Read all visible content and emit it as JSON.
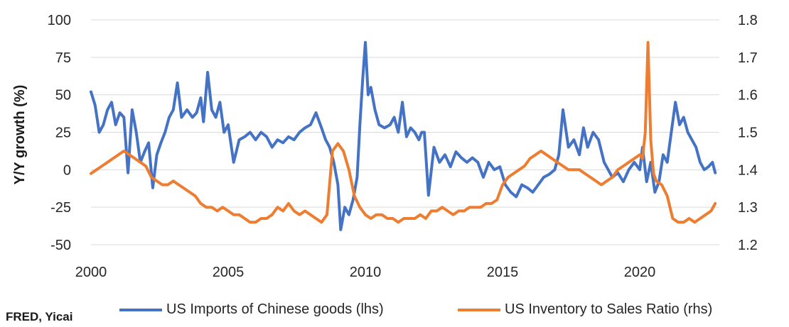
{
  "chart_data": {
    "type": "line",
    "source": "FRED, Yicai",
    "ylabel_left": "Y/Y growth (%)",
    "ylim_left": [
      -50,
      100
    ],
    "yticks_left": [
      "100",
      "75",
      "50",
      "25",
      "0",
      "-25",
      "-50"
    ],
    "ylim_right": [
      1.2,
      1.8
    ],
    "yticks_right": [
      "1.8",
      "1.7",
      "1.6",
      "1.5",
      "1.4",
      "1.3",
      "1.2"
    ],
    "xlim": [
      2000,
      2022.75
    ],
    "xticks": [
      "2000",
      "2005",
      "2010",
      "2015",
      "2020"
    ],
    "grid": true,
    "legend_position": "bottom",
    "colors": {
      "imports": "#4472C4",
      "inventory": "#ED7D31"
    },
    "series": [
      {
        "name": "US Imports of Chinese goods (lhs)",
        "axis": "left",
        "x": [
          2000.0,
          2000.15,
          2000.3,
          2000.45,
          2000.6,
          2000.75,
          2000.9,
          2001.05,
          2001.2,
          2001.35,
          2001.5,
          2001.65,
          2001.8,
          2001.95,
          2002.1,
          2002.25,
          2002.4,
          2002.55,
          2002.7,
          2002.85,
          2003.0,
          2003.15,
          2003.3,
          2003.5,
          2003.7,
          2003.85,
          2004.0,
          2004.1,
          2004.25,
          2004.4,
          2004.55,
          2004.7,
          2004.85,
          2005.0,
          2005.2,
          2005.4,
          2005.6,
          2005.8,
          2006.0,
          2006.2,
          2006.4,
          2006.6,
          2006.8,
          2007.0,
          2007.2,
          2007.4,
          2007.6,
          2007.8,
          2008.0,
          2008.2,
          2008.4,
          2008.55,
          2008.7,
          2008.85,
          2009.0,
          2009.1,
          2009.25,
          2009.4,
          2009.55,
          2009.7,
          2009.8,
          2009.9,
          2010.0,
          2010.1,
          2010.2,
          2010.35,
          2010.5,
          2010.7,
          2010.9,
          2011.05,
          2011.2,
          2011.35,
          2011.5,
          2011.65,
          2011.8,
          2011.95,
          2012.05,
          2012.15,
          2012.3,
          2012.5,
          2012.7,
          2012.9,
          2013.1,
          2013.3,
          2013.5,
          2013.7,
          2013.9,
          2014.1,
          2014.3,
          2014.5,
          2014.7,
          2014.9,
          2015.1,
          2015.3,
          2015.5,
          2015.7,
          2015.9,
          2016.1,
          2016.3,
          2016.5,
          2016.7,
          2016.9,
          2017.05,
          2017.2,
          2017.4,
          2017.6,
          2017.8,
          2017.95,
          2018.1,
          2018.3,
          2018.5,
          2018.7,
          2018.85,
          2019.0,
          2019.2,
          2019.4,
          2019.6,
          2019.8,
          2020.0,
          2020.1,
          2020.25,
          2020.4,
          2020.55,
          2020.7,
          2020.85,
          2021.0,
          2021.15,
          2021.3,
          2021.45,
          2021.6,
          2021.75,
          2021.9,
          2022.05,
          2022.2,
          2022.35,
          2022.5,
          2022.65,
          2022.75
        ],
        "values": [
          52,
          43,
          25,
          30,
          40,
          45,
          30,
          38,
          35,
          -2,
          40,
          25,
          5,
          12,
          18,
          -12,
          10,
          18,
          25,
          35,
          40,
          58,
          35,
          40,
          35,
          38,
          48,
          32,
          65,
          40,
          35,
          45,
          25,
          30,
          5,
          20,
          22,
          25,
          20,
          25,
          22,
          15,
          20,
          18,
          22,
          20,
          25,
          28,
          30,
          38,
          28,
          20,
          15,
          5,
          -10,
          -40,
          -25,
          -30,
          -20,
          -5,
          30,
          60,
          85,
          50,
          55,
          40,
          30,
          28,
          30,
          35,
          25,
          45,
          22,
          28,
          25,
          20,
          25,
          25,
          -17,
          15,
          5,
          10,
          2,
          12,
          8,
          5,
          8,
          5,
          -5,
          5,
          0,
          2,
          -10,
          -15,
          -18,
          -10,
          -12,
          -15,
          -10,
          -5,
          -3,
          0,
          10,
          40,
          15,
          20,
          10,
          28,
          15,
          25,
          20,
          5,
          0,
          -5,
          -2,
          -8,
          0,
          5,
          0,
          15,
          -8,
          5,
          -15,
          -8,
          10,
          5,
          25,
          45,
          30,
          35,
          25,
          20,
          15,
          5,
          0,
          2,
          5,
          -2
        ]
      },
      {
        "name": "US Inventory to Sales Ratio (rhs)",
        "axis": "right",
        "x": [
          2000.0,
          2000.2,
          2000.4,
          2000.6,
          2000.8,
          2001.0,
          2001.2,
          2001.4,
          2001.6,
          2001.8,
          2002.0,
          2002.2,
          2002.4,
          2002.6,
          2002.8,
          2003.0,
          2003.2,
          2003.4,
          2003.6,
          2003.8,
          2004.0,
          2004.2,
          2004.4,
          2004.6,
          2004.8,
          2005.0,
          2005.2,
          2005.4,
          2005.6,
          2005.8,
          2006.0,
          2006.2,
          2006.4,
          2006.6,
          2006.8,
          2007.0,
          2007.2,
          2007.4,
          2007.6,
          2007.8,
          2008.0,
          2008.2,
          2008.4,
          2008.6,
          2008.8,
          2009.0,
          2009.2,
          2009.4,
          2009.6,
          2009.8,
          2010.0,
          2010.2,
          2010.4,
          2010.6,
          2010.8,
          2011.0,
          2011.2,
          2011.4,
          2011.6,
          2011.8,
          2012.0,
          2012.2,
          2012.4,
          2012.6,
          2012.8,
          2013.0,
          2013.2,
          2013.4,
          2013.6,
          2013.8,
          2014.0,
          2014.2,
          2014.4,
          2014.6,
          2014.8,
          2015.0,
          2015.2,
          2015.4,
          2015.6,
          2015.8,
          2016.0,
          2016.2,
          2016.4,
          2016.6,
          2016.8,
          2017.0,
          2017.2,
          2017.4,
          2017.6,
          2017.8,
          2018.0,
          2018.2,
          2018.4,
          2018.6,
          2018.8,
          2019.0,
          2019.2,
          2019.4,
          2019.6,
          2019.8,
          2020.0,
          2020.1,
          2020.2,
          2020.3,
          2020.4,
          2020.5,
          2020.6,
          2020.8,
          2021.0,
          2021.2,
          2021.4,
          2021.6,
          2021.8,
          2022.0,
          2022.2,
          2022.4,
          2022.6,
          2022.75
        ],
        "values": [
          1.39,
          1.4,
          1.41,
          1.42,
          1.43,
          1.44,
          1.45,
          1.44,
          1.43,
          1.42,
          1.41,
          1.38,
          1.37,
          1.36,
          1.36,
          1.37,
          1.36,
          1.35,
          1.34,
          1.33,
          1.31,
          1.3,
          1.3,
          1.29,
          1.3,
          1.29,
          1.28,
          1.28,
          1.27,
          1.26,
          1.26,
          1.27,
          1.27,
          1.28,
          1.3,
          1.29,
          1.31,
          1.29,
          1.28,
          1.29,
          1.28,
          1.27,
          1.26,
          1.28,
          1.45,
          1.47,
          1.45,
          1.4,
          1.33,
          1.3,
          1.28,
          1.27,
          1.28,
          1.28,
          1.27,
          1.27,
          1.26,
          1.27,
          1.27,
          1.27,
          1.28,
          1.27,
          1.29,
          1.29,
          1.3,
          1.29,
          1.28,
          1.29,
          1.29,
          1.3,
          1.3,
          1.3,
          1.31,
          1.31,
          1.32,
          1.36,
          1.38,
          1.39,
          1.4,
          1.41,
          1.43,
          1.44,
          1.45,
          1.44,
          1.43,
          1.42,
          1.41,
          1.4,
          1.4,
          1.4,
          1.39,
          1.38,
          1.37,
          1.36,
          1.37,
          1.38,
          1.4,
          1.41,
          1.42,
          1.43,
          1.44,
          1.43,
          1.5,
          1.74,
          1.48,
          1.39,
          1.37,
          1.36,
          1.33,
          1.27,
          1.26,
          1.26,
          1.27,
          1.26,
          1.27,
          1.28,
          1.29,
          1.31
        ]
      }
    ]
  }
}
